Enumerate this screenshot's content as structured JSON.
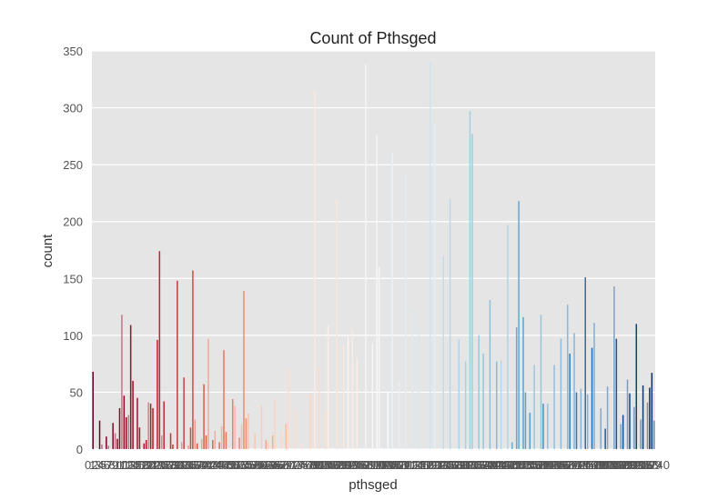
{
  "chart_data": {
    "type": "bar",
    "title": "Count of Pthsged",
    "xlabel": "pthsged",
    "ylabel": "count",
    "ylim": [
      0,
      350
    ],
    "yticks": [
      0,
      50,
      100,
      150,
      200,
      250,
      300,
      350
    ],
    "x_first_tick_label": "0",
    "x_last_tick_label": "740",
    "grid": true,
    "background": "#e5e5e5",
    "grid_color": "#ffffff",
    "palette": "red-white-blue diverging (RdBu)",
    "colors": {
      "red_dark": "#67001f",
      "red": "#b2182b",
      "orange": "#d6604d",
      "peach": "#f4a582",
      "light_peach": "#fddbc7",
      "white": "#f7f7f7",
      "light_blue": "#d1e5f0",
      "sky": "#92c5de",
      "blue": "#4393c3",
      "mid_blue": "#2166ac",
      "dark_blue": "#053061"
    },
    "values": [
      68,
      0,
      0,
      25,
      4,
      0,
      11,
      3,
      0,
      23,
      14,
      9,
      36,
      118,
      47,
      28,
      30,
      109,
      60,
      0,
      45,
      19,
      0,
      5,
      8,
      41,
      40,
      36,
      0,
      96,
      174,
      12,
      42,
      0,
      0,
      14,
      4,
      0,
      148,
      0,
      6,
      63,
      0,
      3,
      19,
      157,
      26,
      5,
      0,
      9,
      57,
      12,
      97,
      0,
      8,
      16,
      0,
      6,
      20,
      87,
      15,
      0,
      0,
      44,
      38,
      0,
      10,
      22,
      139,
      27,
      31,
      0,
      0,
      14,
      0,
      0,
      38,
      0,
      8,
      6,
      0,
      12,
      44,
      0,
      0,
      16,
      0,
      22,
      70,
      0,
      0,
      35,
      0,
      0,
      5,
      0,
      0,
      0,
      48,
      0,
      314,
      0,
      74,
      0,
      0,
      35,
      109,
      0,
      0,
      0,
      219,
      0,
      0,
      92,
      0,
      99,
      0,
      105,
      0,
      80,
      0,
      0,
      0,
      338,
      0,
      0,
      93,
      0,
      276,
      160,
      0,
      0,
      0,
      50,
      0,
      260,
      0,
      0,
      60,
      0,
      0,
      243,
      0,
      0,
      123,
      0,
      0,
      108,
      0,
      0,
      0,
      0,
      340,
      0,
      286,
      0,
      0,
      0,
      170,
      0,
      0,
      220,
      0,
      0,
      0,
      96,
      0,
      0,
      77,
      0,
      297,
      277,
      0,
      0,
      100,
      0,
      84,
      0,
      0,
      131,
      0,
      0,
      77,
      0,
      78,
      0,
      0,
      197,
      0,
      6,
      0,
      107,
      218,
      0,
      116,
      50,
      0,
      32,
      0,
      74,
      0,
      0,
      118,
      40,
      0,
      40,
      0,
      0,
      74,
      0,
      0,
      97,
      0,
      0,
      127,
      84,
      0,
      102,
      50,
      0,
      53,
      0,
      151,
      48,
      0,
      89,
      111,
      0,
      0,
      36,
      0,
      18,
      55,
      0,
      0,
      143,
      97,
      0,
      22,
      30,
      0,
      61,
      49,
      0,
      37,
      110,
      0,
      26,
      56,
      0,
      41,
      54,
      67,
      25
    ]
  }
}
